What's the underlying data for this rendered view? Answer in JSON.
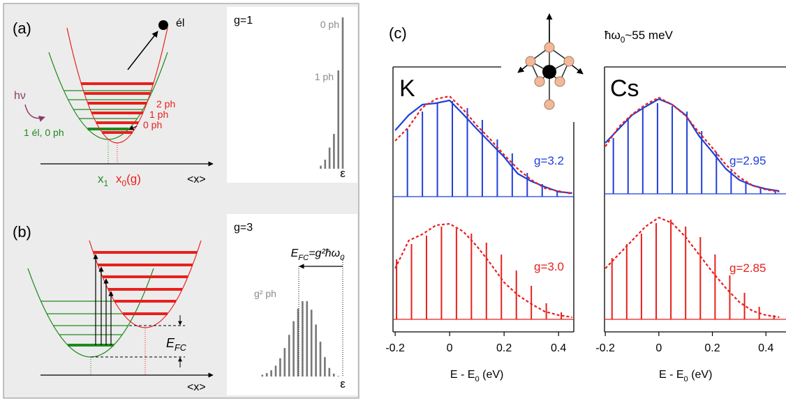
{
  "diagram": {
    "a": {
      "label": "(a)",
      "electron": "él",
      "photon": "hν",
      "levels": [
        "2 ph",
        "1 ph",
        "0 ph"
      ],
      "ground": "1 él, 0 ph",
      "x1": [
        "x",
        "1"
      ],
      "x0": [
        "x",
        "0",
        "(g)"
      ],
      "axis": "<x>"
    },
    "b": {
      "label": "(b)",
      "efc": [
        "E",
        "FC"
      ],
      "axis": "<x>"
    },
    "c": {
      "label": "(c)",
      "phonon": [
        "ħω",
        "0",
        "~55 meV"
      ]
    }
  },
  "chart_data": [
    {
      "type": "stick",
      "title": "g=1",
      "color": "#777777",
      "values": [
        100,
        65,
        23,
        14,
        6,
        2
      ],
      "ylim": [
        0,
        100
      ],
      "annotations": [
        "0 ph",
        "1 ph"
      ],
      "xlabel": "ε"
    },
    {
      "type": "stick",
      "title": "g=3",
      "color": "#777777",
      "values": [
        0.01,
        0.1,
        0.5,
        1.5,
        3.4,
        6.1,
        9.1,
        11.7,
        13.2,
        13.2,
        11.9,
        9.7,
        7.3,
        5.0,
        3.2,
        1.9,
        1.1,
        0.6,
        0.3
      ],
      "ylim": [
        0,
        13.2
      ],
      "annotations": [
        "g² ph"
      ],
      "energy_label": [
        "E",
        "FC",
        "=g²ħω",
        "0"
      ],
      "xlabel": "ε"
    },
    {
      "type": "spectrum",
      "title": "K",
      "xlim": [
        -0.208,
        0.456
      ],
      "xticks": [
        -0.2,
        0,
        0.2,
        0.4
      ],
      "xlabel": [
        "E - E",
        "0",
        " (eV)"
      ],
      "panels": [
        {
          "label": "g=3.2",
          "label_color": "#1f3fdb",
          "ylim": [
            0,
            150
          ],
          "series": [
            {
              "style": "sticks",
              "color": "#1f3fdb",
              "x": [
                -0.155,
                -0.1,
                -0.045,
                0.01,
                0.065,
                0.12,
                0.175,
                0.23,
                0.285,
                0.34,
                0.395
              ],
              "values": [
                97,
                122,
                134,
                137,
                127,
                110,
                82,
                62,
                34,
                18,
                7
              ]
            },
            {
              "style": "solid",
              "color": "#1f3fdb",
              "x": [
                -0.2,
                -0.15,
                -0.1,
                -0.05,
                0,
                0.05,
                0.1,
                0.15,
                0.2,
                0.25,
                0.3,
                0.35,
                0.4,
                0.45
              ],
              "values": [
                95,
                117,
                132,
                134,
                138,
                118,
                97,
                77,
                57,
                33,
                22,
                14,
                7,
                5
              ]
            },
            {
              "style": "dashed",
              "color": "#e8201c",
              "x": [
                -0.2,
                -0.15,
                -0.1,
                -0.05,
                0,
                0.05,
                0.1,
                0.15,
                0.2,
                0.25,
                0.3,
                0.35,
                0.4,
                0.45
              ],
              "values": [
                80,
                100,
                128,
                140,
                144,
                125,
                102,
                82,
                60,
                40,
                24,
                12,
                8,
                4
              ]
            }
          ]
        },
        {
          "label": "g=3.0",
          "label_color": "#e8201c",
          "ylim": [
            0,
            150
          ],
          "series": [
            {
              "style": "sticks",
              "color": "#e8201c",
              "x": [
                -0.195,
                -0.14,
                -0.085,
                -0.03,
                0.025,
                0.08,
                0.135,
                0.19,
                0.245,
                0.3,
                0.355,
                0.41
              ],
              "values": [
                86,
                108,
                120,
                133,
                130,
                123,
                110,
                93,
                70,
                48,
                23,
                10
              ]
            },
            {
              "style": "dashed",
              "color": "#e8201c",
              "x": [
                -0.2,
                -0.15,
                -0.1,
                -0.05,
                0,
                0.05,
                0.1,
                0.15,
                0.2,
                0.25,
                0.3,
                0.35,
                0.4,
                0.45
              ],
              "values": [
                73,
                113,
                122,
                135,
                137,
                126,
                105,
                80,
                53,
                35,
                22,
                11,
                6,
                3
              ]
            }
          ]
        }
      ]
    },
    {
      "type": "spectrum",
      "title": "Cs",
      "xlim": [
        -0.203,
        0.475
      ],
      "xticks": [
        -0.2,
        0,
        0.2,
        0.4
      ],
      "xlabel": [
        "E - E",
        "0",
        " (eV)"
      ],
      "panels": [
        {
          "label": "g=2.95",
          "label_color": "#1f3fdb",
          "ylim": [
            0,
            150
          ],
          "series": [
            {
              "style": "sticks",
              "color": "#1f3fdb",
              "x": [
                -0.17,
                -0.115,
                -0.06,
                -0.005,
                0.05,
                0.105,
                0.16,
                0.215,
                0.27,
                0.325,
                0.38,
                0.435
              ],
              "values": [
                80,
                108,
                123,
                130,
                126,
                118,
                90,
                60,
                33,
                16,
                8,
                4
              ]
            },
            {
              "style": "solid",
              "color": "#1f3fdb",
              "x": [
                -0.2,
                -0.15,
                -0.1,
                -0.05,
                0,
                0.05,
                0.1,
                0.15,
                0.2,
                0.25,
                0.3,
                0.35,
                0.4,
                0.45
              ],
              "values": [
                73,
                93,
                113,
                125,
                136,
                128,
                113,
                83,
                60,
                36,
                20,
                12,
                7,
                4
              ]
            },
            {
              "style": "dashed",
              "color": "#e8201c",
              "x": [
                -0.2,
                -0.15,
                -0.1,
                -0.05,
                0,
                0.05,
                0.1,
                0.15,
                0.2,
                0.25,
                0.3,
                0.35,
                0.4,
                0.45
              ],
              "values": [
                68,
                96,
                114,
                128,
                138,
                128,
                112,
                88,
                66,
                42,
                24,
                12,
                6,
                3
              ]
            }
          ]
        },
        {
          "label": "g=2.85",
          "label_color": "#e8201c",
          "ylim": [
            0,
            150
          ],
          "series": [
            {
              "style": "sticks",
              "color": "#e8201c",
              "x": [
                -0.175,
                -0.12,
                -0.065,
                -0.01,
                0.045,
                0.1,
                0.155,
                0.21,
                0.265,
                0.32,
                0.375,
                0.43
              ],
              "values": [
                88,
                108,
                123,
                138,
                143,
                133,
                118,
                93,
                63,
                38,
                18,
                6
              ]
            },
            {
              "style": "dashed",
              "color": "#e8201c",
              "x": [
                -0.2,
                -0.15,
                -0.1,
                -0.05,
                0,
                0.05,
                0.1,
                0.15,
                0.2,
                0.25,
                0.3,
                0.35,
                0.4,
                0.45
              ],
              "values": [
                73,
                93,
                113,
                133,
                146,
                138,
                118,
                93,
                68,
                45,
                25,
                12,
                6,
                3
              ]
            }
          ]
        }
      ]
    }
  ]
}
